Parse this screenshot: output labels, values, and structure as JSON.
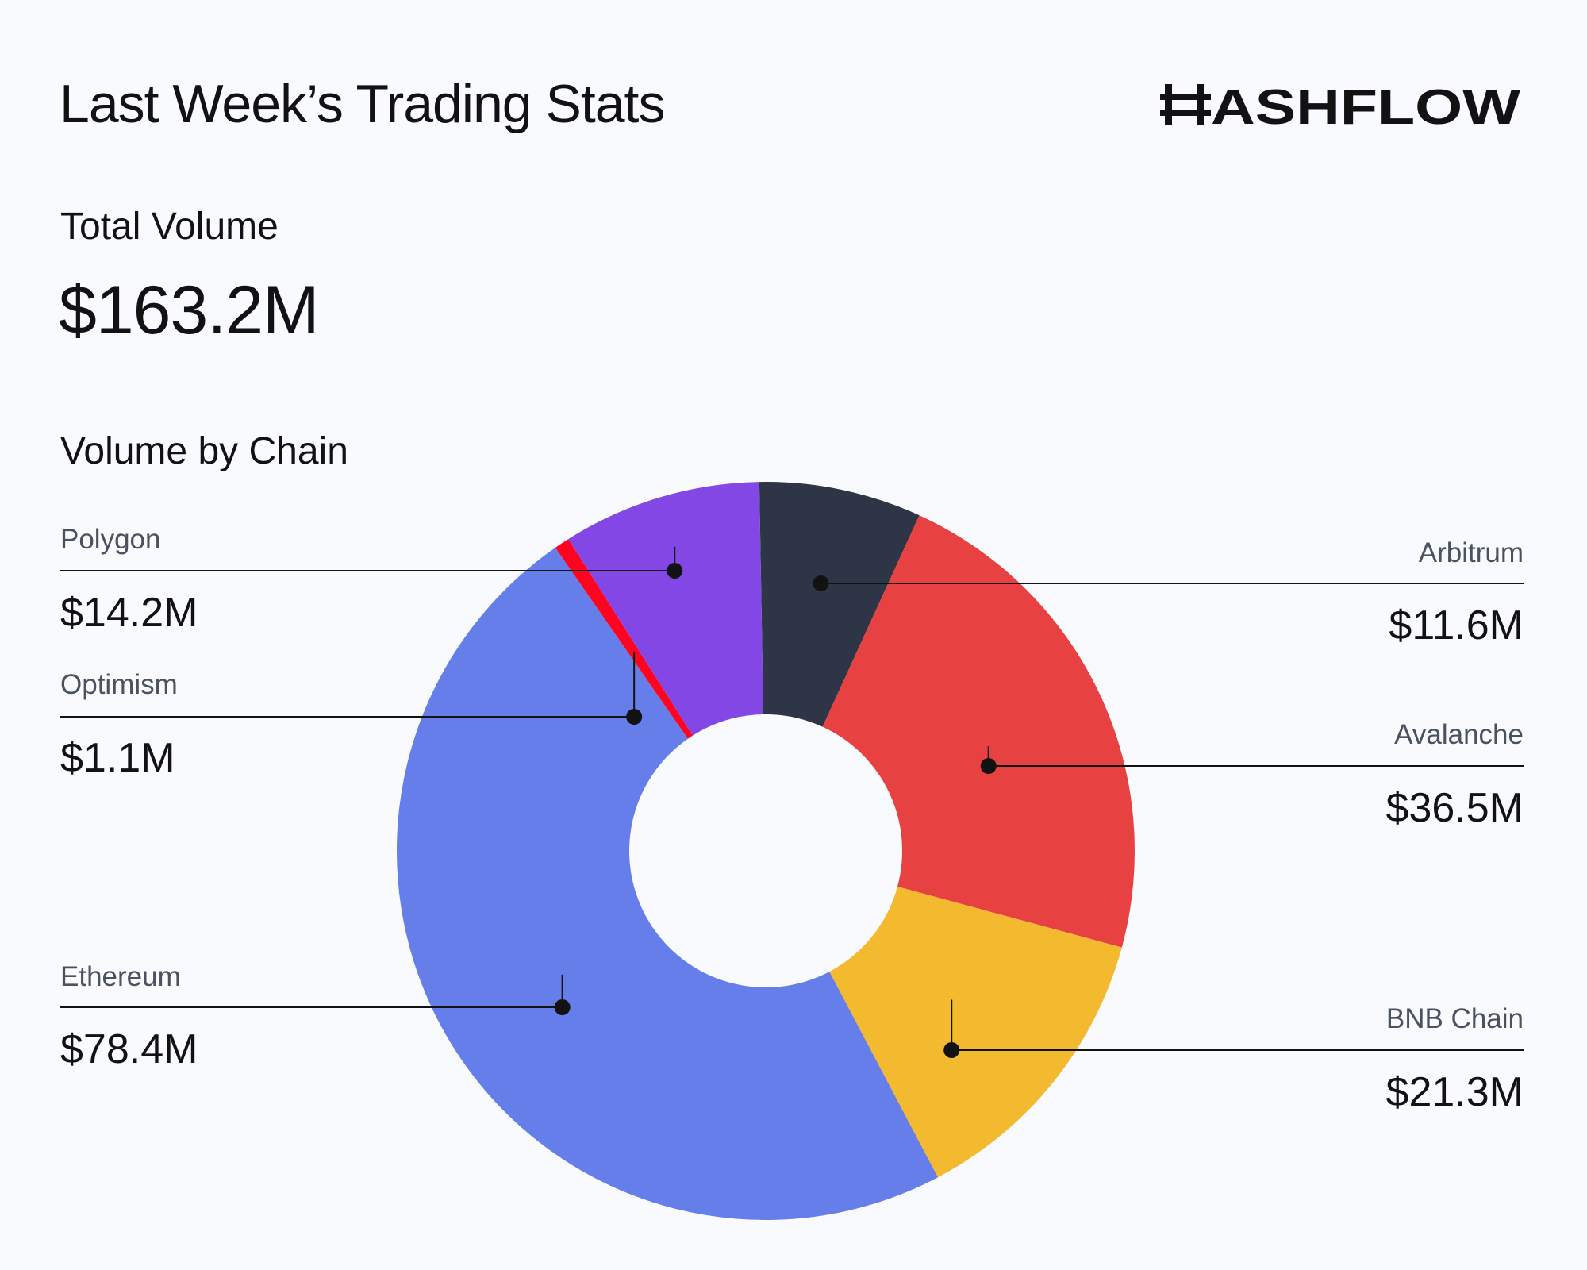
{
  "header": {
    "title": "Last Week’s Trading Stats",
    "brand": "HASHFLOW"
  },
  "summary": {
    "total_label": "Total Volume",
    "total_value": "$163.2M"
  },
  "section": {
    "label": "Volume by Chain"
  },
  "colors": {
    "background": "#f8fafd",
    "text": "#121212",
    "muted": "#4a5260"
  },
  "chart_data": {
    "type": "pie",
    "title": "Volume by Chain",
    "donut": true,
    "unit": "$M",
    "legend": "callout labels",
    "series": [
      {
        "name": "Arbitrum",
        "value": 11.6,
        "label": "$11.6M",
        "color": "#2d3547"
      },
      {
        "name": "Avalanche",
        "value": 36.5,
        "label": "$36.5M",
        "color": "#e84142"
      },
      {
        "name": "BNB Chain",
        "value": 21.3,
        "label": "$21.3M",
        "color": "#f3ba2f"
      },
      {
        "name": "Ethereum",
        "value": 78.4,
        "label": "$78.4M",
        "color": "#667eea"
      },
      {
        "name": "Optimism",
        "value": 1.1,
        "label": "$1.1M",
        "color": "#ff0420"
      },
      {
        "name": "Polygon",
        "value": 14.2,
        "label": "$14.2M",
        "color": "#8247e5"
      }
    ]
  }
}
